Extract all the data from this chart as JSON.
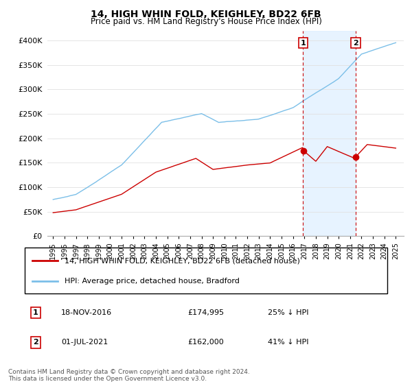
{
  "title": "14, HIGH WHIN FOLD, KEIGHLEY, BD22 6FB",
  "subtitle": "Price paid vs. HM Land Registry's House Price Index (HPI)",
  "hpi_label": "HPI: Average price, detached house, Bradford",
  "price_label": "14, HIGH WHIN FOLD, KEIGHLEY, BD22 6FB (detached house)",
  "annotation1": {
    "num": "1",
    "date": "18-NOV-2016",
    "price": "£174,995",
    "pct": "25% ↓ HPI",
    "x_year": 2016.89
  },
  "annotation2": {
    "num": "2",
    "date": "01-JUL-2021",
    "price": "£162,000",
    "pct": "41% ↓ HPI",
    "x_year": 2021.5
  },
  "ann1_price_val": 174995,
  "ann2_price_val": 162000,
  "hpi_color": "#7bbfe8",
  "price_color": "#cc0000",
  "vline_color": "#cc0000",
  "highlight_bg": "#ddeeff",
  "ylim": [
    0,
    420000
  ],
  "xlim_start": 1994.5,
  "xlim_end": 2025.7,
  "footnote": "Contains HM Land Registry data © Crown copyright and database right 2024.\nThis data is licensed under the Open Government Licence v3.0.",
  "yticks": [
    0,
    50000,
    100000,
    150000,
    200000,
    250000,
    300000,
    350000,
    400000
  ],
  "ytick_labels": [
    "£0",
    "£50K",
    "£100K",
    "£150K",
    "£200K",
    "£250K",
    "£300K",
    "£350K",
    "£400K"
  ]
}
